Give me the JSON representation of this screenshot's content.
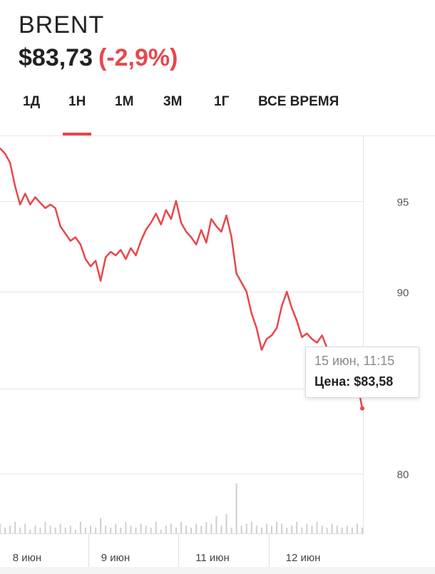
{
  "ticker": "BRENT",
  "price": "$83,73",
  "change": "(-2,9%)",
  "tabs": [
    {
      "label": "1Д",
      "active": false
    },
    {
      "label": "1Н",
      "active": true
    },
    {
      "label": "1М",
      "active": false
    },
    {
      "label": "3М",
      "active": false
    },
    {
      "label": "1Г",
      "active": false
    },
    {
      "label": "ВСЕ ВРЕМЯ",
      "active": false
    }
  ],
  "tooltip": {
    "date": "15 июн, 11:15",
    "price": "Цена: $83,58"
  },
  "colors": {
    "line": "#e8474a",
    "accent": "#e8474a",
    "grid": "#e6e6e6",
    "volume": "#cfcfcf"
  },
  "chart_data": {
    "type": "line",
    "y_ticks": [
      95,
      90,
      80
    ],
    "ylim": [
      76.7,
      98.6
    ],
    "x_labels": [
      "8 июн",
      "9 июн",
      "11 июн",
      "12 июн"
    ],
    "series": [
      {
        "values": [
          97.9,
          97.6,
          97.1,
          95.8,
          94.8,
          95.4,
          94.8,
          95.2,
          94.9,
          94.6,
          94.8,
          94.6,
          93.6,
          93.2,
          92.8,
          93.0,
          92.6,
          91.8,
          91.4,
          91.7,
          90.6,
          91.9,
          92.2,
          92.0,
          92.3,
          91.8,
          92.4,
          92.0,
          92.8,
          93.4,
          93.8,
          94.3,
          93.7,
          94.5,
          94.0,
          95.0,
          93.8,
          93.3,
          93.0,
          92.6,
          93.4,
          92.7,
          94.0,
          93.6,
          93.3,
          94.2,
          93.0,
          91.0,
          90.5,
          90.0,
          88.8,
          88.0,
          86.8,
          87.4,
          87.6,
          88.0,
          89.2,
          90.0,
          89.1,
          88.4,
          87.5,
          87.7,
          87.4,
          87.2,
          87.6,
          86.9,
          86.7,
          86.8,
          86.6,
          86.3,
          86.1,
          85.0,
          83.58
        ]
      }
    ],
    "volume": [
      0.5,
      0.3,
      0.4,
      0.6,
      0.3,
      0.5,
      0.2,
      0.4,
      0.3,
      0.6,
      0.4,
      0.3,
      0.5,
      0.3,
      0.4,
      0.2,
      0.6,
      0.3,
      0.4,
      0.3,
      0.8,
      0.4,
      0.3,
      0.5,
      0.3,
      0.6,
      0.4,
      0.3,
      0.5,
      0.4,
      0.3,
      0.6,
      0.2,
      0.4,
      0.5,
      0.3,
      0.6,
      0.4,
      0.3,
      0.5,
      0.4,
      0.6,
      0.5,
      0.9,
      0.4,
      1.0,
      0.3,
      2.6,
      0.4,
      0.5,
      0.6,
      0.4,
      0.3,
      0.5,
      0.4,
      0.6,
      0.5,
      0.3,
      0.4,
      0.6,
      0.3,
      0.5,
      0.4,
      0.6,
      0.4,
      0.3,
      0.5,
      0.4,
      0.3,
      0.4,
      0.3,
      0.5,
      0.3
    ]
  }
}
